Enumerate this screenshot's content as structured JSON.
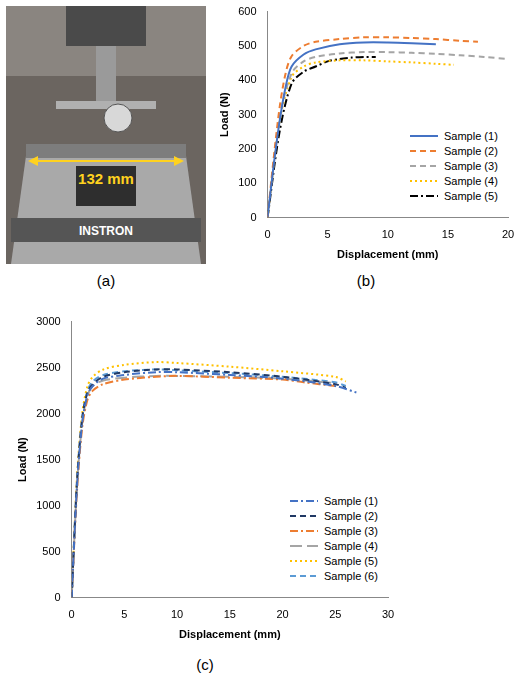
{
  "photo": {
    "dimension_label": "132 mm",
    "brand": "INSTRON"
  },
  "panel_labels": [
    "(a)",
    "(b)",
    "(c)"
  ],
  "chart_data": [
    {
      "type": "line",
      "x_label": "Displacement (mm)",
      "y_label": "Load (N)",
      "xlim": [
        0,
        20
      ],
      "xticks": [
        0,
        5,
        10,
        15,
        20
      ],
      "ylim": [
        0,
        600
      ],
      "yticks": [
        0,
        100,
        200,
        300,
        400,
        500,
        600
      ],
      "grid": false,
      "legend": "lower right",
      "series": [
        {
          "name": "Sample (1)",
          "color": "#4472c4",
          "line_style": "solid",
          "x": [
            0,
            0.5,
            1,
            1.5,
            2,
            3,
            4,
            6,
            8,
            10,
            12,
            14
          ],
          "values": [
            0,
            150,
            280,
            380,
            440,
            475,
            490,
            505,
            510,
            510,
            508,
            505
          ]
        },
        {
          "name": "Sample (2)",
          "color": "#ed7d31",
          "line_style": "dashed",
          "x": [
            0,
            0.5,
            1,
            1.5,
            2,
            3,
            4,
            6,
            8,
            10,
            12,
            14,
            16,
            17.5
          ],
          "values": [
            0,
            170,
            320,
            420,
            470,
            500,
            512,
            520,
            525,
            525,
            523,
            520,
            515,
            512
          ]
        },
        {
          "name": "Sample (3)",
          "color": "#a5a5a5",
          "line_style": "dashed",
          "x": [
            0,
            1,
            2,
            3,
            4,
            6,
            8,
            10,
            12,
            14,
            16,
            18,
            20
          ],
          "values": [
            0,
            290,
            420,
            455,
            468,
            478,
            482,
            482,
            480,
            477,
            473,
            468,
            462
          ]
        },
        {
          "name": "Sample (4)",
          "color": "#ffc000",
          "line_style": "dotted",
          "x": [
            0,
            1,
            2,
            3,
            4,
            6,
            8,
            10,
            12,
            14,
            15.5
          ],
          "values": [
            0,
            280,
            410,
            440,
            452,
            458,
            458,
            455,
            452,
            448,
            445
          ]
        },
        {
          "name": "Sample (5)",
          "color": "#000000",
          "line_style": "dashdot",
          "x": [
            0,
            1,
            2,
            3,
            4,
            5,
            6,
            7,
            8,
            9
          ],
          "values": [
            0,
            250,
            390,
            425,
            440,
            455,
            462,
            466,
            468,
            468
          ]
        }
      ]
    },
    {
      "type": "line",
      "x_label": "Displacement (mm)",
      "y_label": "Load (N)",
      "xlim": [
        0,
        30
      ],
      "xticks": [
        0,
        5,
        10,
        15,
        20,
        25,
        30
      ],
      "ylim": [
        0,
        3000
      ],
      "yticks": [
        0,
        500,
        1000,
        1500,
        2000,
        2500,
        3000
      ],
      "grid": false,
      "legend": "lower right",
      "series": [
        {
          "name": "Sample (1)",
          "color": "#4472c4",
          "line_style": "dashdot",
          "x": [
            0,
            0.5,
            1,
            1.5,
            2,
            3,
            5,
            8,
            10,
            15,
            20,
            25,
            27
          ],
          "values": [
            0,
            1200,
            1900,
            2200,
            2300,
            2380,
            2420,
            2450,
            2450,
            2420,
            2380,
            2300,
            2230
          ]
        },
        {
          "name": "Sample (2)",
          "color": "#203864",
          "line_style": "dashed",
          "x": [
            0,
            0.5,
            1,
            1.5,
            2,
            3,
            5,
            8,
            10,
            15,
            20,
            25,
            26
          ],
          "values": [
            0,
            1250,
            1950,
            2230,
            2320,
            2400,
            2450,
            2480,
            2480,
            2450,
            2400,
            2320,
            2280
          ]
        },
        {
          "name": "Sample (3)",
          "color": "#ed7d31",
          "line_style": "dashdot",
          "x": [
            0,
            0.5,
            1,
            1.5,
            2,
            3,
            5,
            8,
            10,
            15,
            20,
            22,
            25
          ],
          "values": [
            0,
            1150,
            1850,
            2150,
            2250,
            2320,
            2370,
            2400,
            2410,
            2390,
            2370,
            2340,
            2300
          ]
        },
        {
          "name": "Sample (4)",
          "color": "#a5a5a5",
          "line_style": "longdash",
          "x": [
            0,
            0.5,
            1,
            1.5,
            2,
            3,
            5,
            8,
            10,
            15,
            20,
            25
          ],
          "values": [
            0,
            1200,
            1900,
            2200,
            2300,
            2360,
            2390,
            2410,
            2410,
            2400,
            2380,
            2330
          ]
        },
        {
          "name": "Sample (5)",
          "color": "#ffc000",
          "line_style": "dotted",
          "x": [
            0,
            0.5,
            1,
            1.5,
            2,
            3,
            5,
            8,
            10,
            15,
            20,
            25,
            26
          ],
          "values": [
            0,
            1300,
            2000,
            2300,
            2400,
            2480,
            2530,
            2560,
            2550,
            2510,
            2460,
            2400,
            2350
          ]
        },
        {
          "name": "Sample (6)",
          "color": "#5b9bd5",
          "line_style": "dashed",
          "x": [
            0,
            0.5,
            1,
            1.5,
            2,
            3,
            5,
            8,
            10,
            15,
            20,
            25,
            26
          ],
          "values": [
            0,
            1250,
            1950,
            2250,
            2350,
            2420,
            2460,
            2480,
            2470,
            2440,
            2400,
            2340,
            2300
          ]
        }
      ]
    }
  ]
}
